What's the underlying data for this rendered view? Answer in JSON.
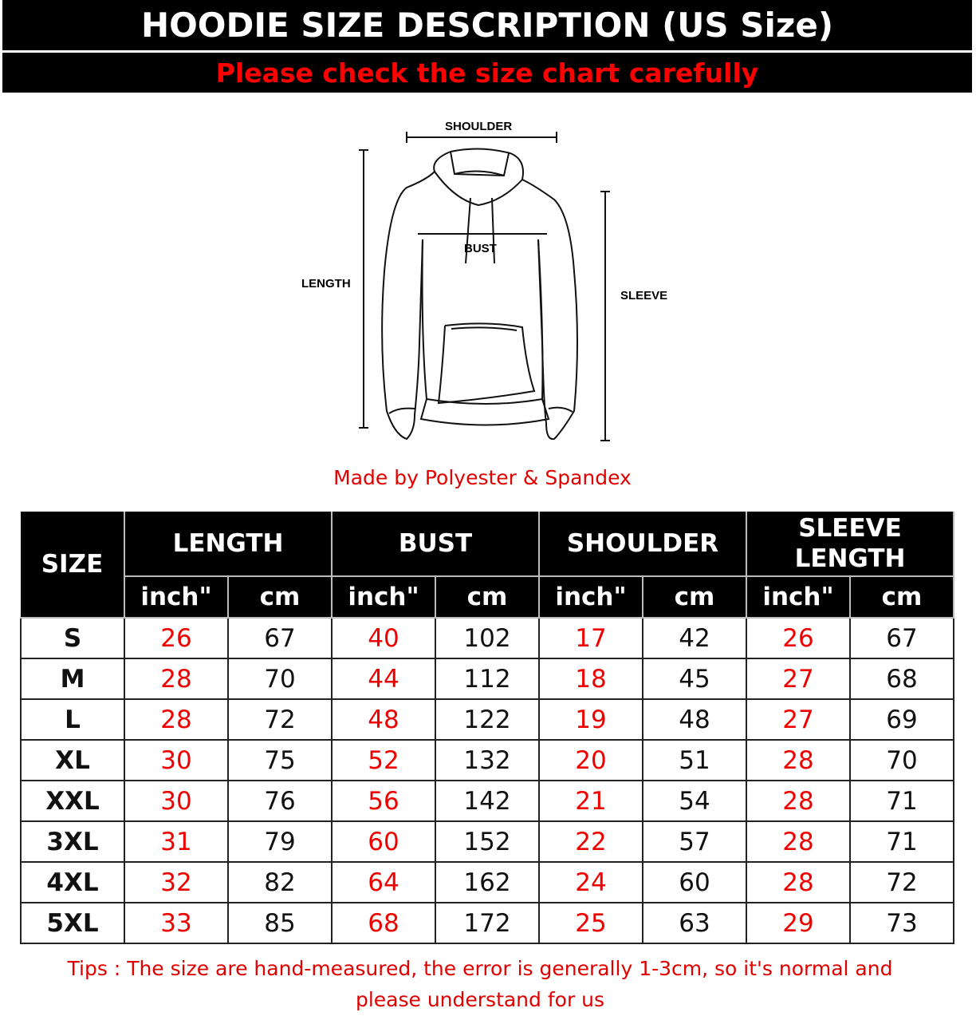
{
  "header": {
    "title": "HOODIE SIZE DESCRIPTION (US Size)",
    "subtitle": "Please check the size chart carefully"
  },
  "diagram": {
    "labels": {
      "shoulder": "SHOULDER",
      "bust": "BUST",
      "length": "LENGTH",
      "sleeve": "SLEEVE"
    }
  },
  "material": "Made by Polyester & Spandex",
  "table": {
    "size_header": "SIZE",
    "groups": [
      "LENGTH",
      "BUST",
      "SHOULDER",
      "SLEEVE LENGTH"
    ],
    "units": [
      "inch\"",
      "cm"
    ],
    "rows": [
      {
        "size": "S",
        "values": [
          "26",
          "67",
          "40",
          "102",
          "17",
          "42",
          "26",
          "67"
        ]
      },
      {
        "size": "M",
        "values": [
          "28",
          "70",
          "44",
          "112",
          "18",
          "45",
          "27",
          "68"
        ]
      },
      {
        "size": "L",
        "values": [
          "28",
          "72",
          "48",
          "122",
          "19",
          "48",
          "27",
          "69"
        ]
      },
      {
        "size": "XL",
        "values": [
          "30",
          "75",
          "52",
          "132",
          "20",
          "51",
          "28",
          "70"
        ]
      },
      {
        "size": "XXL",
        "values": [
          "30",
          "76",
          "56",
          "142",
          "21",
          "54",
          "28",
          "71"
        ]
      },
      {
        "size": "3XL",
        "values": [
          "31",
          "79",
          "60",
          "152",
          "22",
          "57",
          "28",
          "71"
        ]
      },
      {
        "size": "4XL",
        "values": [
          "32",
          "82",
          "64",
          "162",
          "24",
          "60",
          "28",
          "72"
        ]
      },
      {
        "size": "5XL",
        "values": [
          "33",
          "85",
          "68",
          "172",
          "25",
          "63",
          "29",
          "73"
        ]
      }
    ]
  },
  "tips": "Tips : The size are hand-measured, the error is generally 1-3cm, so it's normal and please understand for us",
  "colors": {
    "accent": "#ff0000",
    "header_bg": "#000000"
  }
}
